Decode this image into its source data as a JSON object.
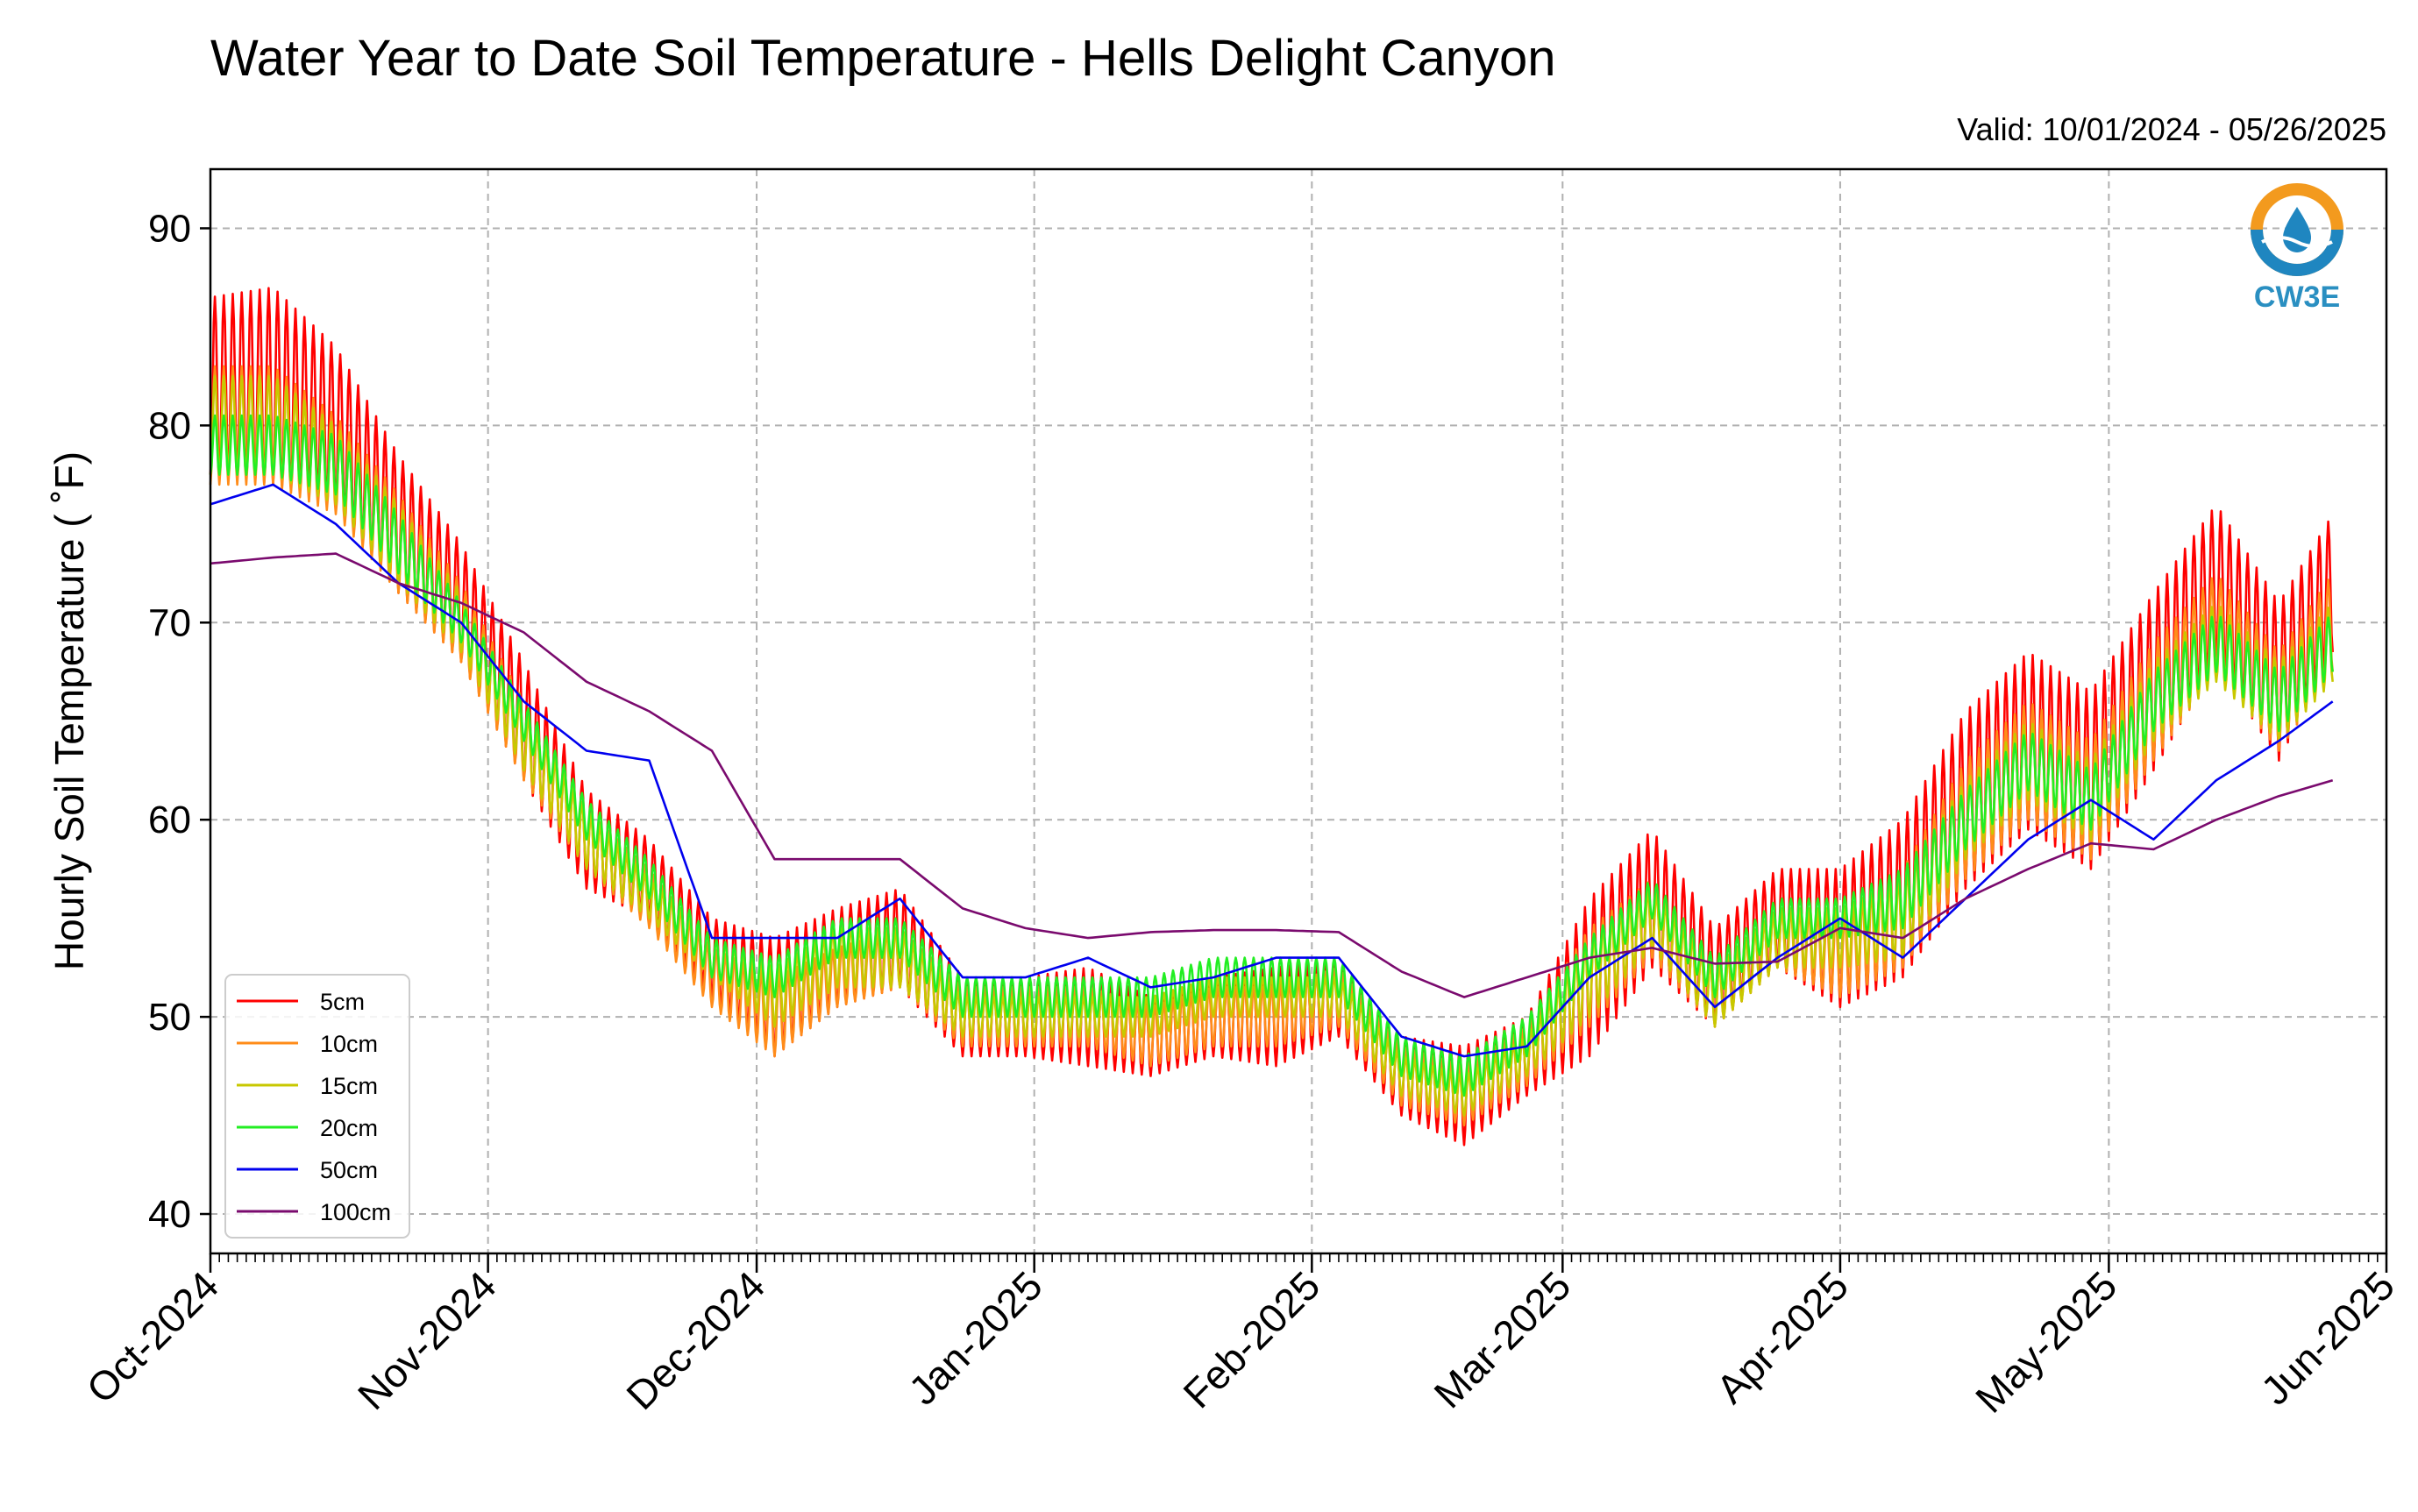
{
  "chart_data": {
    "type": "line",
    "title": "Water Year to Date Soil Temperature - Hells Delight Canyon",
    "subtitle": "Valid: 10/01/2024 - 05/26/2025",
    "xlabel": "",
    "ylabel": "Hourly Soil Temperature ( ˚F)",
    "xlim": [
      "2024-10-01",
      "2025-06-01"
    ],
    "ylim": [
      38,
      93
    ],
    "x_ticks": [
      "Oct-2024",
      "Nov-2024",
      "Dec-2024",
      "Jan-2025",
      "Feb-2025",
      "Mar-2025",
      "Apr-2025",
      "May-2025",
      "Jun-2025"
    ],
    "x_tick_dates": [
      "2024-10-01",
      "2024-11-01",
      "2024-12-01",
      "2025-01-01",
      "2025-02-01",
      "2025-03-01",
      "2025-04-01",
      "2025-05-01",
      "2025-06-01"
    ],
    "y_ticks": [
      40,
      50,
      60,
      70,
      80,
      90
    ],
    "grid": true,
    "legend_position": "lower-left",
    "x": [
      "2024-10-01",
      "2024-10-08",
      "2024-10-15",
      "2024-10-22",
      "2024-10-29",
      "2024-11-05",
      "2024-11-12",
      "2024-11-19",
      "2024-11-26",
      "2024-12-03",
      "2024-12-10",
      "2024-12-17",
      "2024-12-24",
      "2024-12-31",
      "2025-01-07",
      "2025-01-14",
      "2025-01-21",
      "2025-01-28",
      "2025-02-04",
      "2025-02-11",
      "2025-02-18",
      "2025-02-25",
      "2025-03-04",
      "2025-03-11",
      "2025-03-18",
      "2025-03-25",
      "2025-04-01",
      "2025-04-08",
      "2025-04-15",
      "2025-04-22",
      "2025-04-29",
      "2025-05-06",
      "2025-05-13",
      "2025-05-20",
      "2025-05-26"
    ],
    "series": [
      {
        "name": "5cm",
        "color": "#ff0000",
        "amplitude": [
          9,
          10,
          8,
          7,
          6,
          6,
          5,
          4,
          4,
          6,
          5,
          5,
          4,
          4,
          5,
          4,
          4,
          5,
          4,
          4,
          5,
          4,
          8,
          7,
          5,
          5,
          7,
          8,
          9,
          9,
          9,
          9,
          8,
          8,
          7
        ],
        "values": [
          82,
          82,
          80,
          75,
          71,
          65,
          59,
          57,
          53,
          51,
          53,
          54,
          50,
          50,
          50,
          49,
          50,
          50,
          51,
          47,
          46,
          48,
          52,
          56,
          52,
          55,
          54,
          56,
          61,
          64,
          62,
          67,
          72,
          67,
          72
        ]
      },
      {
        "name": "10cm",
        "color": "#ff8c1a",
        "amplitude": [
          6,
          6,
          5,
          5,
          4,
          4,
          3,
          3,
          3,
          4,
          3,
          3,
          3,
          3,
          3,
          3,
          3,
          3,
          3,
          3,
          3,
          3,
          5,
          4,
          3,
          3,
          4,
          5,
          6,
          6,
          6,
          6,
          5,
          5,
          5
        ],
        "values": [
          80,
          80,
          78,
          74,
          70,
          64,
          59,
          56,
          52,
          50,
          52,
          53,
          50,
          50,
          50,
          49,
          50,
          50,
          51,
          47,
          46,
          48,
          52,
          55,
          51,
          54,
          53,
          55,
          60,
          63,
          61,
          66,
          70,
          66,
          70
        ]
      },
      {
        "name": "15cm",
        "color": "#c8c800",
        "amplitude": [
          5,
          5,
          4,
          4,
          3,
          3,
          3,
          2,
          2,
          3,
          3,
          3,
          2,
          2,
          2,
          2,
          2,
          2,
          2,
          2,
          2,
          2,
          4,
          3,
          3,
          3,
          3,
          4,
          4,
          4,
          4,
          4,
          4,
          4,
          4
        ],
        "values": [
          80,
          80,
          78,
          74,
          70,
          64,
          59,
          56,
          53,
          51,
          53,
          53,
          50,
          50,
          50,
          50,
          51,
          51,
          51,
          47,
          46,
          48,
          52,
          55,
          51,
          54,
          54,
          55,
          60,
          63,
          61,
          66,
          69,
          66,
          69
        ]
      },
      {
        "name": "20cm",
        "color": "#22ee22",
        "amplitude": [
          3,
          3,
          3,
          3,
          2,
          2,
          2,
          2,
          2,
          2,
          2,
          2,
          2,
          2,
          2,
          2,
          2,
          2,
          2,
          2,
          2,
          2,
          2,
          2,
          2,
          2,
          2,
          3,
          3,
          3,
          3,
          3,
          3,
          3,
          3
        ],
        "values": [
          79,
          79,
          78,
          74,
          70,
          65,
          60,
          57,
          53,
          52,
          54,
          54,
          51,
          51,
          51,
          51,
          52,
          52,
          52,
          48,
          47,
          49,
          53,
          56,
          52,
          55,
          55,
          56,
          60,
          63,
          61,
          66,
          69,
          66,
          69
        ]
      },
      {
        "name": "50cm",
        "color": "#0000ee",
        "amplitude": [
          0,
          0,
          0,
          0,
          0,
          0,
          0,
          0,
          0,
          0,
          0,
          0,
          0,
          0,
          0,
          0,
          0,
          0,
          0,
          0,
          0,
          0,
          0,
          0,
          0,
          0,
          0,
          0,
          0,
          0,
          0,
          0,
          0,
          0,
          0
        ],
        "values": [
          76,
          77,
          75,
          72,
          70,
          66,
          63.5,
          63,
          54,
          54,
          54,
          56,
          52,
          52,
          53,
          51.5,
          52,
          53,
          53,
          49,
          48,
          48.5,
          52,
          54,
          50.5,
          53,
          55,
          53,
          56,
          59,
          61,
          59,
          62,
          64,
          66
        ]
      },
      {
        "name": "100cm",
        "color": "#7a0a6e",
        "amplitude": [
          0,
          0,
          0,
          0,
          0,
          0,
          0,
          0,
          0,
          0,
          0,
          0,
          0,
          0,
          0,
          0,
          0,
          0,
          0,
          0,
          0,
          0,
          0,
          0,
          0,
          0,
          0,
          0,
          0,
          0,
          0,
          0,
          0,
          0,
          0
        ],
        "values": [
          73,
          73.3,
          73.5,
          72,
          71,
          69.5,
          67,
          65.5,
          63.5,
          58,
          58,
          58,
          55.5,
          54.5,
          54,
          54.3,
          54.4,
          54.4,
          54.3,
          52.3,
          51,
          52,
          53,
          53.5,
          52.7,
          52.8,
          54.5,
          54,
          56,
          57.5,
          58.8,
          58.5,
          60,
          61.2,
          62
        ]
      }
    ],
    "logo": {
      "text": "CW3E",
      "colors": {
        "orange": "#f39a1e",
        "blue": "#1f86c0"
      }
    }
  }
}
